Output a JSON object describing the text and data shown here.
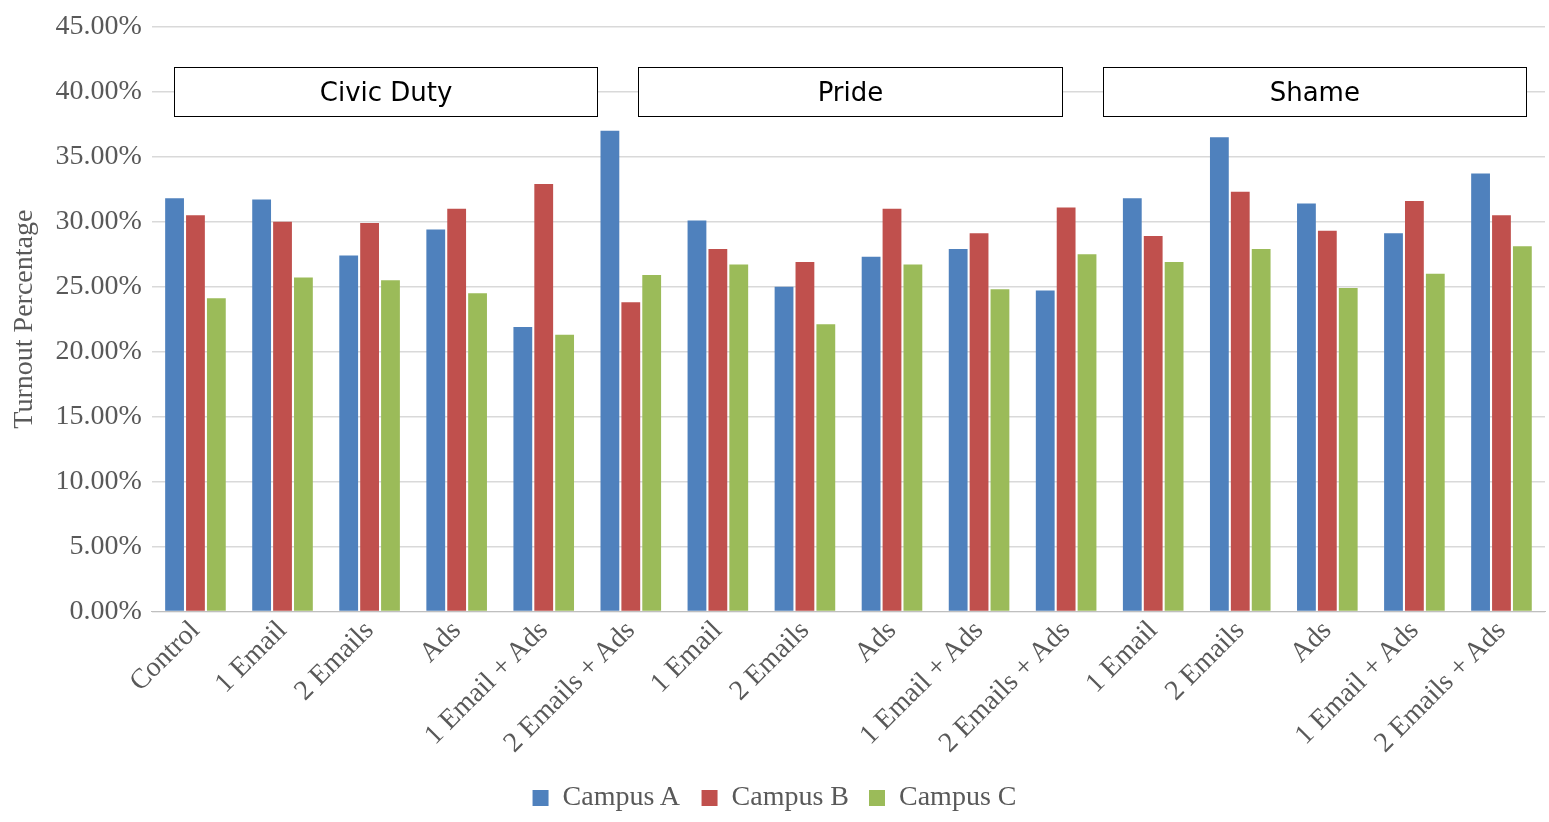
{
  "chart_data": {
    "type": "bar",
    "ylabel": "Turnout Percentage",
    "categories": [
      "Control",
      "1 Email",
      "2 Emails",
      "Ads",
      "1 Email + Ads",
      "2 Emails + Ads",
      "1 Email",
      "2 Emails",
      "Ads",
      "1 Email + Ads",
      "2 Emails + Ads",
      "1 Email",
      "2 Emails",
      "Ads",
      "1 Email + Ads",
      "2 Emails + Ads"
    ],
    "series": [
      {
        "name": "Campus A",
        "color": "#4f81bd",
        "values": [
          31.8,
          31.7,
          27.4,
          29.4,
          21.9,
          37.0,
          30.1,
          25.0,
          27.3,
          27.9,
          24.7,
          31.8,
          36.5,
          31.4,
          29.1,
          33.7
        ]
      },
      {
        "name": "Campus B",
        "color": "#c0504d",
        "values": [
          30.5,
          30.0,
          29.9,
          31.0,
          32.9,
          23.8,
          27.9,
          26.9,
          31.0,
          29.1,
          31.1,
          28.9,
          32.3,
          29.3,
          31.6,
          30.5
        ]
      },
      {
        "name": "Campus C",
        "color": "#9bbb59",
        "values": [
          24.1,
          25.7,
          25.5,
          24.5,
          21.3,
          25.9,
          26.7,
          22.1,
          26.7,
          24.8,
          27.5,
          26.9,
          27.9,
          24.9,
          26.0,
          28.1
        ]
      }
    ],
    "ylim": [
      0,
      45
    ],
    "yticks": [
      {
        "value": 0,
        "label": "0.00%"
      },
      {
        "value": 5,
        "label": "5.00%"
      },
      {
        "value": 10,
        "label": "10.00%"
      },
      {
        "value": 15,
        "label": "15.00%"
      },
      {
        "value": 20,
        "label": "20.00%"
      },
      {
        "value": 25,
        "label": "25.00%"
      },
      {
        "value": 30,
        "label": "30.00%"
      },
      {
        "value": 35,
        "label": "35.00%"
      },
      {
        "value": 40,
        "label": "40.00%"
      },
      {
        "value": 45,
        "label": "45.00%"
      }
    ],
    "grid": "y",
    "legend": "bottom",
    "annotations": [
      "Civic Duty",
      "Pride",
      "Shame"
    ]
  }
}
